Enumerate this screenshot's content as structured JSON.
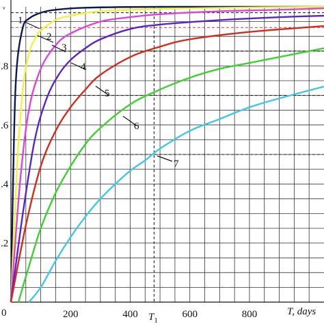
{
  "chart_data": {
    "type": "line",
    "title": "",
    "xlabel": "T, days",
    "ylabel": "",
    "y_axis_char": "v",
    "xlim": [
      0,
      1050
    ],
    "ylim": [
      0,
      1.0
    ],
    "x_ticks": [
      200,
      400,
      600,
      800
    ],
    "x_tick_labels": [
      "200",
      "400",
      "600",
      "800"
    ],
    "y_ticks": [
      0.2,
      0.4,
      0.6,
      0.8
    ],
    "y_tick_labels": [
      ".2",
      ".4",
      ".6",
      ".8"
    ],
    "origin_label": "0",
    "grid": true,
    "markers": {
      "t1": {
        "x": 480,
        "label": "T",
        "subscript": "1"
      }
    },
    "series": [
      {
        "name": "1",
        "color": "#0b1a55",
        "x": [
          0,
          10,
          20,
          40,
          60,
          100,
          150,
          250,
          500,
          1050
        ],
        "y": [
          0,
          0.55,
          0.8,
          0.93,
          0.96,
          0.98,
          0.99,
          0.997,
          1.0,
          1.0
        ]
      },
      {
        "name": "2",
        "color": "#f2f23a",
        "x": [
          0,
          20,
          40,
          60,
          80,
          100,
          150,
          200,
          300,
          500,
          800,
          1050
        ],
        "y": [
          0,
          0.45,
          0.72,
          0.84,
          0.89,
          0.92,
          0.955,
          0.97,
          0.985,
          0.993,
          0.998,
          1.0
        ]
      },
      {
        "name": "3",
        "color": "#dd44dd",
        "x": [
          0,
          30,
          60,
          100,
          150,
          200,
          300,
          400,
          500,
          700,
          900,
          1050
        ],
        "y": [
          0,
          0.4,
          0.65,
          0.79,
          0.87,
          0.91,
          0.95,
          0.965,
          0.975,
          0.985,
          0.99,
          0.995
        ]
      },
      {
        "name": "4",
        "color": "#5a22cc",
        "x": [
          0,
          40,
          80,
          120,
          160,
          200,
          250,
          300,
          400,
          500,
          700,
          900,
          1050
        ],
        "y": [
          0,
          0.3,
          0.55,
          0.69,
          0.77,
          0.82,
          0.86,
          0.89,
          0.925,
          0.94,
          0.955,
          0.965,
          0.97
        ]
      },
      {
        "name": "5",
        "color": "#d42a1a",
        "x": [
          0,
          50,
          100,
          150,
          200,
          250,
          300,
          400,
          500,
          600,
          800,
          1050
        ],
        "y": [
          0,
          0.26,
          0.46,
          0.58,
          0.66,
          0.72,
          0.77,
          0.83,
          0.865,
          0.89,
          0.915,
          0.935
        ]
      },
      {
        "name": "6",
        "color": "#3bd22b",
        "x": [
          25,
          60,
          100,
          150,
          200,
          250,
          300,
          400,
          500,
          600,
          700,
          800,
          900,
          1050
        ],
        "y": [
          0,
          0.12,
          0.25,
          0.37,
          0.46,
          0.535,
          0.59,
          0.67,
          0.72,
          0.76,
          0.79,
          0.81,
          0.83,
          0.86
        ]
      },
      {
        "name": "7",
        "color": "#3cc8e6",
        "x": [
          60,
          100,
          150,
          200,
          250,
          300,
          350,
          400,
          450,
          500,
          600,
          700,
          800,
          900,
          1050
        ],
        "y": [
          0,
          0.05,
          0.14,
          0.22,
          0.29,
          0.35,
          0.4,
          0.445,
          0.48,
          0.52,
          0.58,
          0.62,
          0.66,
          0.69,
          0.73
        ]
      }
    ]
  }
}
